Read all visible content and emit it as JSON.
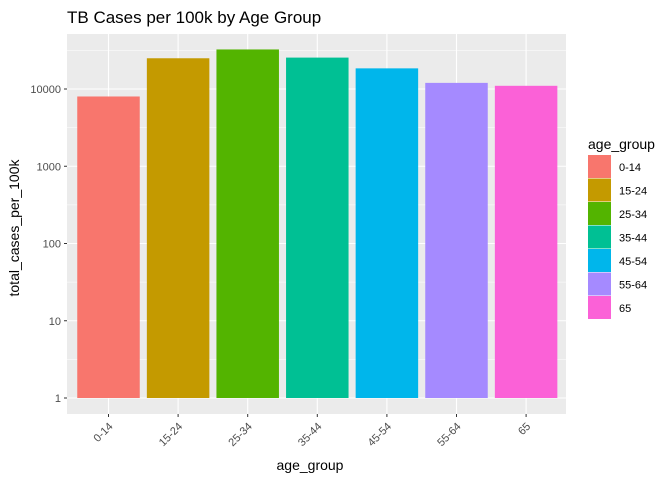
{
  "chart_data": {
    "type": "bar",
    "title": "TB Cases per 100k by Age Group",
    "xlabel": "age_group",
    "ylabel": "total_cases_per_100k",
    "y_scale": "log10",
    "ylim": [
      1,
      32000
    ],
    "y_ticks": [
      1,
      10,
      100,
      1000,
      10000
    ],
    "y_tick_labels": [
      "1",
      "10",
      "100",
      "1000",
      "10000"
    ],
    "grid": true,
    "legend_position": "right",
    "legend_title": "age_group",
    "categories": [
      "0-14",
      "15-24",
      "25-34",
      "35-44",
      "45-54",
      "55-64",
      "65"
    ],
    "values": [
      8000,
      25000,
      32500,
      25500,
      18500,
      12000,
      11000
    ],
    "colors": [
      "#F8766D",
      "#C49A00",
      "#53B400",
      "#00C094",
      "#00B6EB",
      "#A58AFF",
      "#FB61D7"
    ]
  }
}
